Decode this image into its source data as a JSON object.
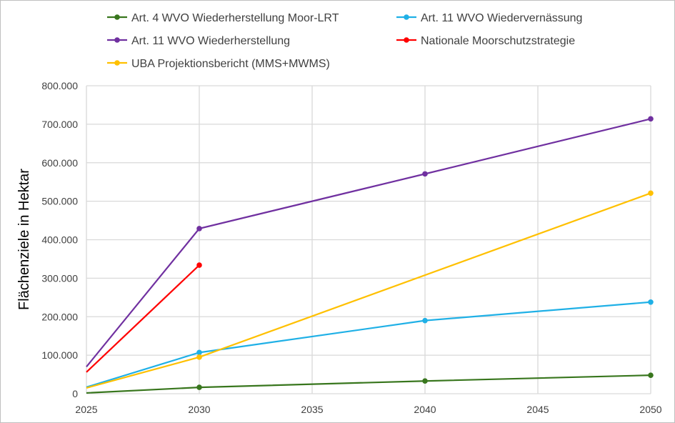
{
  "chart_data": {
    "type": "line",
    "title": "",
    "xlabel": "",
    "ylabel": "Flächenziele in Hektar",
    "xlim": [
      2025,
      2050
    ],
    "ylim": [
      0,
      800000
    ],
    "x_ticks": [
      "2025",
      "2030",
      "2035",
      "2040",
      "2045",
      "2050"
    ],
    "y_ticks": [
      "0",
      "100.000",
      "200.000",
      "300.000",
      "400.000",
      "500.000",
      "600.000",
      "700.000",
      "800.000"
    ],
    "grid": true,
    "legend_position": "top",
    "series": [
      {
        "name": "Art. 4 WVO Wiederherstellung Moor-LRT",
        "color": "#38761d",
        "x": [
          2025,
          2030,
          2040,
          2050
        ],
        "y": [
          2000,
          16500,
          33000,
          48000
        ],
        "markers": [
          false,
          true,
          true,
          true
        ]
      },
      {
        "name": "Art. 11 WVO Wiedervernässung",
        "color": "#1fb0e6",
        "x": [
          2025,
          2030,
          2040,
          2050
        ],
        "y": [
          17000,
          107000,
          190000,
          238000
        ],
        "markers": [
          false,
          true,
          true,
          true
        ]
      },
      {
        "name": "Art. 11 WVO Wiederherstellung",
        "color": "#7030a0",
        "x": [
          2025,
          2030,
          2040,
          2050
        ],
        "y": [
          70000,
          429000,
          571000,
          714000
        ],
        "markers": [
          false,
          true,
          true,
          true
        ]
      },
      {
        "name": "Nationale Moorschutzstrategie",
        "color": "#ff0000",
        "x": [
          2025,
          2030
        ],
        "y": [
          56000,
          334000
        ],
        "markers": [
          false,
          true
        ]
      },
      {
        "name": "UBA Projektionsbericht (MMS+MWMS)",
        "color": "#ffc000",
        "x": [
          2025,
          2030,
          2050
        ],
        "y": [
          15000,
          95000,
          521000
        ],
        "markers": [
          false,
          true,
          true
        ]
      }
    ]
  }
}
